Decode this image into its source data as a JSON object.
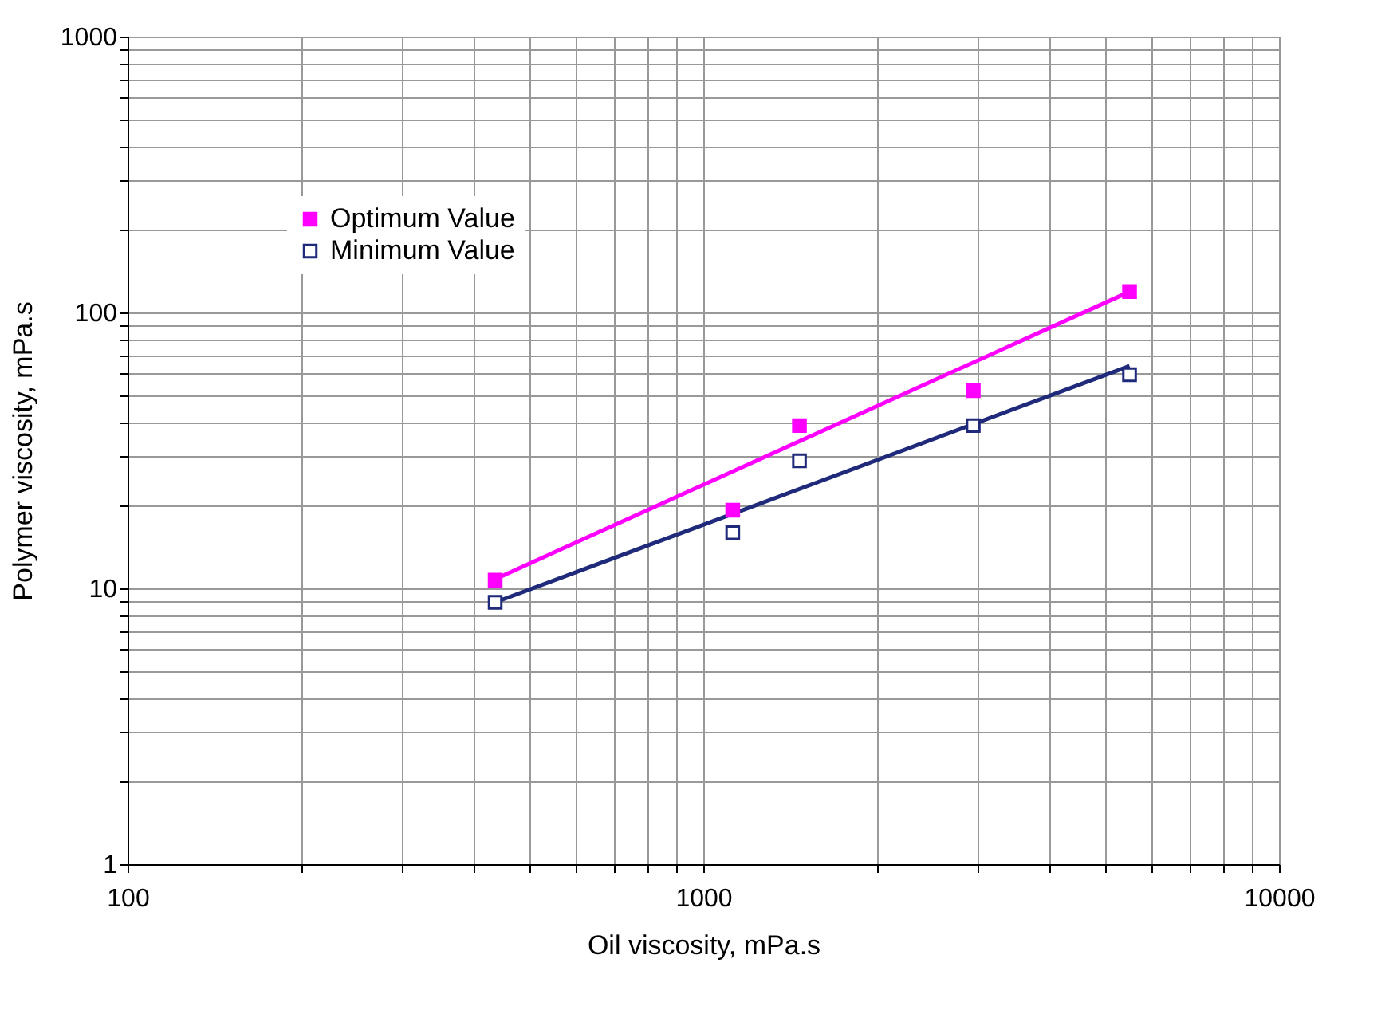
{
  "chart_data": {
    "type": "scatter",
    "xlabel": "Oil viscosity, mPa.s",
    "ylabel": "Polymer viscosity, mPa.s",
    "log": "xy",
    "grid": true,
    "legend": "top left",
    "marker": "square",
    "xlim": [
      100,
      10000
    ],
    "ylim": [
      1,
      1000
    ],
    "xticks": [
      100,
      {
        "value": 200,
        "label": null
      },
      {
        "value": 300,
        "label": null
      },
      {
        "value": 400,
        "label": null
      },
      {
        "value": 500,
        "label": null
      },
      {
        "value": 600,
        "label": null
      },
      {
        "value": 700,
        "label": null
      },
      {
        "value": 800,
        "label": null
      },
      {
        "value": 900,
        "label": null
      },
      1000,
      {
        "value": 2000,
        "label": null
      },
      {
        "value": 3000,
        "label": null
      },
      {
        "value": 4000,
        "label": null
      },
      {
        "value": 5000,
        "label": null
      },
      {
        "value": 6000,
        "label": null
      },
      {
        "value": 7000,
        "label": null
      },
      {
        "value": 8000,
        "label": null
      },
      {
        "value": 9000,
        "label": null
      },
      10000
    ],
    "yticks": [
      1,
      {
        "value": 2,
        "label": null
      },
      {
        "value": 3,
        "label": null
      },
      {
        "value": 4,
        "label": null
      },
      {
        "value": 5,
        "label": null
      },
      {
        "value": 6,
        "label": null
      },
      {
        "value": 7,
        "label": null
      },
      {
        "value": 8,
        "label": null
      },
      {
        "value": 9,
        "label": null
      },
      10,
      {
        "value": 20,
        "label": null
      },
      {
        "value": 30,
        "label": null
      },
      {
        "value": 40,
        "label": null
      },
      {
        "value": 50,
        "label": null
      },
      {
        "value": 60,
        "label": null
      },
      {
        "value": 70,
        "label": null
      },
      {
        "value": 80,
        "label": null
      },
      {
        "value": 90,
        "label": null
      },
      100,
      {
        "value": 200,
        "label": null
      },
      {
        "value": 300,
        "label": null
      },
      {
        "value": 400,
        "label": null
      },
      {
        "value": 500,
        "label": null
      },
      {
        "value": 600,
        "label": null
      },
      {
        "value": 700,
        "label": null
      },
      {
        "value": 800,
        "label": null
      },
      {
        "value": 900,
        "label": null
      },
      1000
    ],
    "series": [
      {
        "name": "Optimum Value",
        "color": "#ff00ff",
        "x": [
          435,
          1125,
          1469,
          2944,
          5500
        ],
        "values": [
          10.7,
          19.2,
          38.9,
          52.1,
          119
        ]
      },
      {
        "name": "Minimum Value",
        "color": "#1f2a7a",
        "x": [
          435,
          1125,
          1469,
          2944,
          5500
        ],
        "values": [
          8.9,
          15.9,
          29,
          38.9,
          59.5
        ]
      },
      {
        "type": "line",
        "marker": "none",
        "color": "#ff00ff",
        "x": [
          435,
          5500
        ],
        "values": [
          10.8,
          119
        ]
      },
      {
        "type": "line",
        "marker": "none",
        "color": "#1f2a7a",
        "x": [
          435,
          5500
        ],
        "values": [
          8.9,
          64
        ]
      }
    ]
  }
}
